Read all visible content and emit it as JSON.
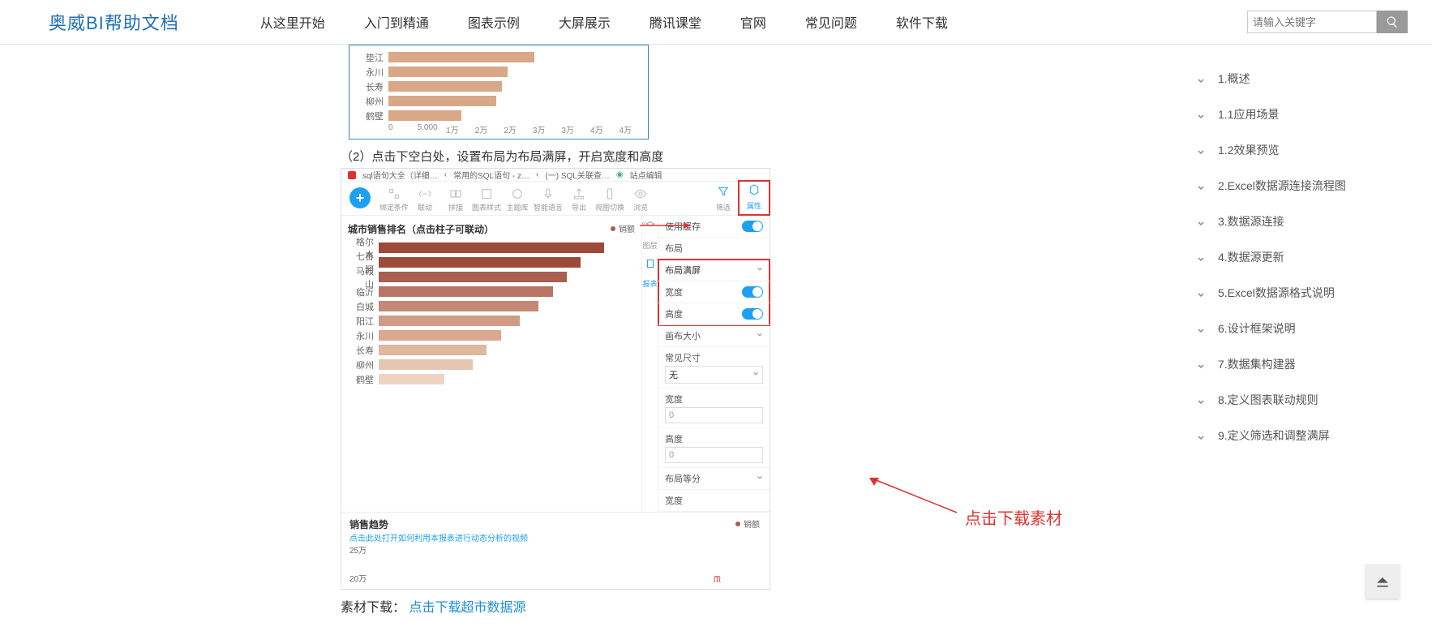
{
  "brand": "奥威BI帮助文档",
  "nav": [
    "从这里开始",
    "入门到精通",
    "图表示例",
    "大屏展示",
    "腾讯课堂",
    "官网",
    "常见问题",
    "软件下载"
  ],
  "search_placeholder": "请输入关键字",
  "toc": [
    "1.概述",
    "1.1应用场景",
    "1.2效果预览",
    "2.Excel数据源连接流程图",
    "3.数据源连接",
    "4.数据源更新",
    "5.Excel数据源格式说明",
    "6.设计框架说明",
    "7.数据集构建器",
    "8.定义图表联动规则",
    "9.定义筛选和调整满屏"
  ],
  "chart_top": {
    "type": "bar-horizontal",
    "color": "#d9a887",
    "max": 45000,
    "axis": [
      "0",
      "5,000",
      "1万",
      "2万",
      "2万",
      "3万",
      "3万",
      "4万",
      "4万"
    ],
    "rows": [
      {
        "label": "垫江",
        "value": 27000
      },
      {
        "label": "永川",
        "value": 22000
      },
      {
        "label": "长寿",
        "value": 21000
      },
      {
        "label": "柳州",
        "value": 20000
      },
      {
        "label": "鹤壁",
        "value": 13500
      }
    ]
  },
  "step_text": "（2）点击下空白处，设置布局为布局满屏，开启宽度和高度",
  "browser_tabs": [
    "sql语句大全（详细…",
    "常用的SQL语句 - z…",
    "(一) SQL关联查…",
    "站点编辑"
  ],
  "tools": [
    "绑定条件",
    "联动",
    "拼接",
    "图表样式",
    "主题库",
    "智能语言",
    "导出",
    "视图切换",
    "浏览"
  ],
  "tool_filter": "筛选",
  "tool_props": "属性",
  "chart2": {
    "title": "城市销售排名（点击柱子可联动）",
    "legend": "销额",
    "type": "bar-horizontal",
    "max": 50000,
    "rows": [
      {
        "label": "格尔木",
        "value": 48000,
        "color": "#9c4b3b"
      },
      {
        "label": "七台河",
        "value": 43000,
        "color": "#9c4b3b"
      },
      {
        "label": "马鞍山",
        "value": 40000,
        "color": "#a85f4f"
      },
      {
        "label": "临沂",
        "value": 37000,
        "color": "#b87563"
      },
      {
        "label": "白城",
        "value": 34000,
        "color": "#c58976"
      },
      {
        "label": "阳江",
        "value": 30000,
        "color": "#d19a87"
      },
      {
        "label": "永川",
        "value": 26000,
        "color": "#d9a98f"
      },
      {
        "label": "长寿",
        "value": 23000,
        "color": "#e0b79f"
      },
      {
        "label": "柳州",
        "value": 20000,
        "color": "#e6c5b0"
      },
      {
        "label": "鹤壁",
        "value": 14000,
        "color": "#ecd3c2"
      }
    ]
  },
  "side_tabs": {
    "a": "图层",
    "b": "报表"
  },
  "props": {
    "cache": {
      "label": "使用缓存"
    },
    "layout_section": "布局",
    "layout_mode": {
      "label": "布局满屏"
    },
    "width": {
      "label": "宽度"
    },
    "height": {
      "label": "高度"
    },
    "canvas_section": "画布大小",
    "preset": {
      "label": "常见尺寸",
      "value": "无"
    },
    "w": {
      "label": "宽度",
      "value": "0"
    },
    "h": {
      "label": "高度",
      "value": "0"
    },
    "equal_section": "布局等分",
    "eq_w": {
      "label": "宽度"
    }
  },
  "trend": {
    "title": "销售趋势",
    "link": "点击此处打开如何利用本报表进行动态分析的视频",
    "v1": "25万",
    "v2": "20万",
    "legend": "销额"
  },
  "download": {
    "label": "素材下载：",
    "link": "点击下载超市数据源"
  },
  "annot_download": "点击下载素材"
}
